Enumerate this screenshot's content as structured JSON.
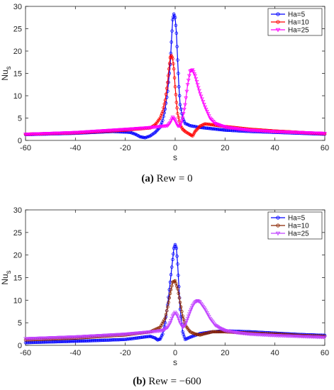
{
  "chart_data": [
    {
      "type": "line",
      "caption_label": "(a)",
      "caption_text": "Rew = 0",
      "xlabel": "s",
      "ylabel_main": "Nu",
      "ylabel_sub": "s",
      "xlim": [
        -60,
        60
      ],
      "ylim": [
        0,
        30
      ],
      "xticks": [
        -60,
        -40,
        -20,
        0,
        20,
        40,
        60
      ],
      "yticks": [
        0,
        5,
        10,
        15,
        20,
        25,
        30
      ],
      "grid": false,
      "legend_position": "top-right",
      "series": [
        {
          "name": "Ha=5",
          "color": "#0000ff",
          "marker": "circle",
          "x": [
            -60,
            -40,
            -25,
            -18,
            -16,
            -14,
            -12,
            -10,
            -8,
            -6,
            -5,
            -4,
            -3,
            -2,
            -1.5,
            -1,
            -0.5,
            0,
            0.5,
            1,
            1.5,
            2,
            3,
            4,
            6,
            10,
            15,
            20,
            30,
            40,
            50,
            60
          ],
          "y": [
            1.3,
            1.6,
            2.0,
            1.8,
            1.4,
            0.8,
            0.6,
            1.0,
            1.8,
            3.0,
            4.5,
            7.0,
            11.0,
            17.0,
            22.0,
            27.0,
            28.3,
            27.5,
            24.0,
            18.0,
            12.0,
            8.0,
            5.0,
            3.8,
            3.3,
            2.9,
            2.6,
            2.3,
            2.0,
            1.8,
            1.6,
            1.4
          ]
        },
        {
          "name": "Ha=10",
          "color": "#ff0000",
          "marker": "circle",
          "x": [
            -60,
            -40,
            -20,
            -10,
            -8,
            -6,
            -5,
            -4,
            -3,
            -2.5,
            -2,
            -1.5,
            -1,
            -0.5,
            0,
            0.5,
            1,
            2,
            3,
            4,
            6,
            7,
            8,
            10,
            12,
            15,
            20,
            30,
            40,
            50,
            60
          ],
          "y": [
            1.4,
            1.7,
            2.3,
            2.8,
            3.5,
            5.0,
            6.5,
            9.0,
            13.0,
            16.0,
            18.5,
            19.0,
            18.3,
            16.0,
            12.0,
            8.5,
            6.0,
            3.5,
            2.5,
            2.0,
            1.3,
            1.0,
            2.0,
            3.2,
            3.7,
            3.5,
            3.1,
            2.5,
            2.1,
            1.8,
            1.5
          ]
        },
        {
          "name": "Ha=25",
          "color": "#ff00ff",
          "marker": "triangle-down",
          "x": [
            -60,
            -40,
            -20,
            -10,
            -5,
            -3,
            -2,
            -1,
            0,
            1,
            2,
            3,
            4,
            5,
            6,
            7,
            8,
            9,
            10,
            12,
            14,
            16,
            20,
            25,
            30,
            40,
            50,
            60
          ],
          "y": [
            1.4,
            1.8,
            2.5,
            2.9,
            3.2,
            3.3,
            4.0,
            5.2,
            4.5,
            3.3,
            3.2,
            5.0,
            8.0,
            12.5,
            15.5,
            15.8,
            14.5,
            12.5,
            10.5,
            7.5,
            5.0,
            3.8,
            3.0,
            2.6,
            2.3,
            2.0,
            1.8,
            1.6
          ]
        }
      ]
    },
    {
      "type": "line",
      "caption_label": "(b)",
      "caption_text": "Rew = −600",
      "xlabel": "s",
      "ylabel_main": "Nu",
      "ylabel_sub": "s",
      "xlim": [
        -60,
        60
      ],
      "ylim": [
        0,
        30
      ],
      "xticks": [
        -60,
        -40,
        -20,
        0,
        20,
        40,
        60
      ],
      "yticks": [
        0,
        5,
        10,
        15,
        20,
        25,
        30
      ],
      "grid": false,
      "legend_position": "top-right",
      "series": [
        {
          "name": "Ha=5",
          "color": "#0000ff",
          "marker": "circle",
          "x": [
            -60,
            -40,
            -20,
            -10,
            -8,
            -7,
            -6,
            -5,
            -4,
            -3,
            -2,
            -1,
            -0.5,
            0,
            0.5,
            1,
            1.5,
            2,
            3,
            4,
            6,
            10,
            15,
            20,
            30,
            40,
            50,
            60
          ],
          "y": [
            0.6,
            0.9,
            1.3,
            2.0,
            1.6,
            1.2,
            1.4,
            2.5,
            5.0,
            9.0,
            14.0,
            19.0,
            21.5,
            22.3,
            21.5,
            18.0,
            13.0,
            8.0,
            3.0,
            1.3,
            1.8,
            2.6,
            3.0,
            3.2,
            3.0,
            2.7,
            2.4,
            2.2
          ]
        },
        {
          "name": "Ha=10",
          "color": "#8b2500",
          "marker": "circle",
          "x": [
            -60,
            -40,
            -20,
            -10,
            -6,
            -4,
            -3,
            -2,
            -1,
            0,
            1,
            2,
            3,
            4,
            6,
            8,
            10,
            12,
            15,
            20,
            30,
            40,
            50,
            60
          ],
          "y": [
            1.2,
            1.6,
            2.3,
            3.0,
            4.0,
            6.0,
            8.5,
            11.5,
            14.0,
            14.3,
            12.5,
            9.5,
            6.5,
            4.5,
            3.0,
            2.5,
            2.3,
            2.6,
            3.0,
            3.0,
            2.7,
            2.5,
            2.2,
            2.0
          ]
        },
        {
          "name": "Ha=25",
          "color": "#c040ff",
          "marker": "triangle-down",
          "x": [
            -60,
            -40,
            -20,
            -10,
            -5,
            -3,
            -2,
            -1,
            0,
            1,
            2,
            3,
            4,
            5,
            6,
            7,
            8,
            9,
            10,
            12,
            14,
            16,
            18,
            20,
            25,
            30,
            40,
            50,
            60
          ],
          "y": [
            1.5,
            1.9,
            2.5,
            3.0,
            3.3,
            4.0,
            5.0,
            6.5,
            7.3,
            6.5,
            5.0,
            4.0,
            4.5,
            6.0,
            7.5,
            8.8,
            9.6,
            9.9,
            9.6,
            8.0,
            6.0,
            4.5,
            3.8,
            3.3,
            2.8,
            2.5,
            2.2,
            2.0,
            1.8
          ]
        }
      ]
    }
  ]
}
